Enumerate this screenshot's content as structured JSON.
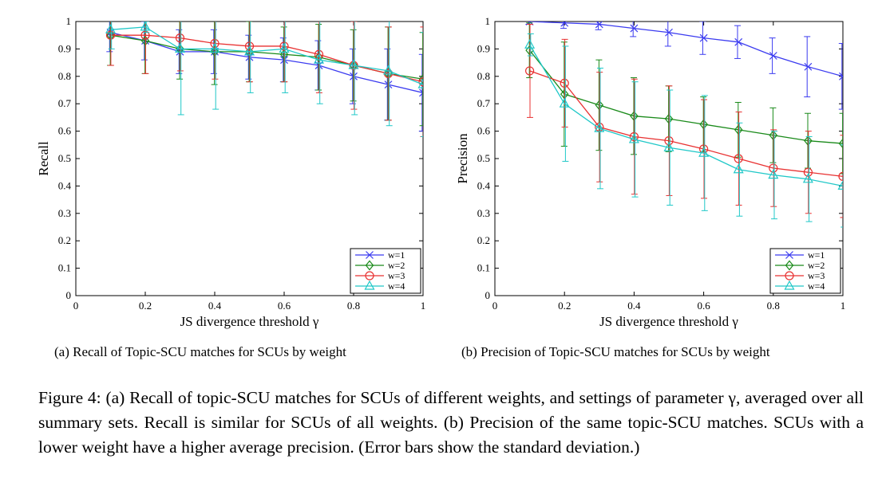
{
  "chart_data": [
    {
      "type": "line",
      "ylabel": "Recall",
      "xlabel": "JS divergence threshold γ",
      "xlim": [
        0,
        1
      ],
      "ylim": [
        0,
        1
      ],
      "xticks": [
        "0",
        "0.2",
        "0.4",
        "0.6",
        "0.8",
        "1"
      ],
      "yticks": [
        "0",
        "0.1",
        "0.2",
        "0.3",
        "0.4",
        "0.5",
        "0.6",
        "0.7",
        "0.8",
        "0.9",
        "1"
      ],
      "x": [
        0.1,
        0.2,
        0.3,
        0.4,
        0.5,
        0.6,
        0.7,
        0.8,
        0.9,
        1.0
      ],
      "legend_position": "bottom-right",
      "grid": false,
      "series": [
        {
          "name": "w=1",
          "color": "#3b3bf0",
          "marker": "x",
          "values": [
            0.96,
            0.93,
            0.89,
            0.89,
            0.87,
            0.86,
            0.84,
            0.8,
            0.77,
            0.74
          ],
          "errors": [
            0.07,
            0.07,
            0.08,
            0.08,
            0.08,
            0.08,
            0.09,
            0.1,
            0.13,
            0.14
          ]
        },
        {
          "name": "w=2",
          "color": "#1a8a1a",
          "marker": "diamond",
          "values": [
            0.95,
            0.93,
            0.9,
            0.89,
            0.89,
            0.88,
            0.87,
            0.84,
            0.81,
            0.79
          ],
          "errors": [
            0.11,
            0.12,
            0.11,
            0.12,
            0.11,
            0.1,
            0.12,
            0.13,
            0.17,
            0.17
          ]
        },
        {
          "name": "w=3",
          "color": "#e83030",
          "marker": "circle",
          "values": [
            0.95,
            0.95,
            0.94,
            0.92,
            0.91,
            0.91,
            0.88,
            0.84,
            0.81,
            0.78
          ],
          "errors": [
            0.11,
            0.14,
            0.12,
            0.13,
            0.13,
            0.13,
            0.14,
            0.16,
            0.17,
            0.2
          ]
        },
        {
          "name": "w=4",
          "color": "#20c8c8",
          "marker": "triangle",
          "values": [
            0.97,
            0.98,
            0.9,
            0.9,
            0.89,
            0.9,
            0.86,
            0.84,
            0.82,
            0.77
          ],
          "errors": [
            0.07,
            0.02,
            0.24,
            0.22,
            0.15,
            0.16,
            0.16,
            0.18,
            0.2,
            0.19
          ]
        }
      ]
    },
    {
      "type": "line",
      "ylabel": "Precision",
      "xlabel": "JS divergence threshold γ",
      "xlim": [
        0,
        1
      ],
      "ylim": [
        0,
        1
      ],
      "xticks": [
        "0",
        "0.2",
        "0.4",
        "0.6",
        "0.8",
        "1"
      ],
      "yticks": [
        "0",
        "0.1",
        "0.2",
        "0.3",
        "0.4",
        "0.5",
        "0.6",
        "0.7",
        "0.8",
        "0.9",
        "1"
      ],
      "x": [
        0.1,
        0.2,
        0.3,
        0.4,
        0.5,
        0.6,
        0.7,
        0.8,
        0.9,
        1.0
      ],
      "legend_position": "bottom-right",
      "grid": false,
      "series": [
        {
          "name": "w=1",
          "color": "#3b3bf0",
          "marker": "x",
          "values": [
            1.0,
            0.995,
            0.99,
            0.975,
            0.96,
            0.94,
            0.925,
            0.875,
            0.835,
            0.8
          ],
          "errors": [
            0.01,
            0.02,
            0.02,
            0.03,
            0.05,
            0.06,
            0.06,
            0.065,
            0.11,
            0.12
          ]
        },
        {
          "name": "w=2",
          "color": "#1a8a1a",
          "marker": "diamond",
          "values": [
            0.895,
            0.735,
            0.695,
            0.655,
            0.645,
            0.625,
            0.605,
            0.585,
            0.565,
            0.555
          ],
          "errors": [
            0.1,
            0.19,
            0.165,
            0.14,
            0.12,
            0.1,
            0.1,
            0.1,
            0.1,
            0.11
          ]
        },
        {
          "name": "w=3",
          "color": "#e83030",
          "marker": "circle",
          "values": [
            0.82,
            0.775,
            0.615,
            0.58,
            0.565,
            0.535,
            0.5,
            0.465,
            0.45,
            0.435
          ],
          "errors": [
            0.17,
            0.16,
            0.2,
            0.21,
            0.2,
            0.18,
            0.17,
            0.14,
            0.15,
            0.15
          ]
        },
        {
          "name": "w=4",
          "color": "#20c8c8",
          "marker": "triangle",
          "values": [
            0.915,
            0.7,
            0.61,
            0.57,
            0.54,
            0.52,
            0.46,
            0.44,
            0.425,
            0.4
          ],
          "errors": [
            0.04,
            0.21,
            0.22,
            0.21,
            0.21,
            0.21,
            0.17,
            0.16,
            0.155,
            0.15
          ]
        }
      ]
    }
  ],
  "subcaptions": {
    "a": "(a)  Recall of Topic-SCU matches for SCUs by weight",
    "b": "(b)  Precision of Topic-SCU matches for SCUs by weight"
  },
  "figure_caption": "Figure 4: (a) Recall of topic-SCU matches for SCUs of different weights, and settings of parameter γ, averaged over all summary sets. Recall is similar for SCUs of all weights. (b) Precision of the same topic-SCU matches. SCUs with a lower weight have a higher average precision. (Error bars show the standard deviation.)"
}
